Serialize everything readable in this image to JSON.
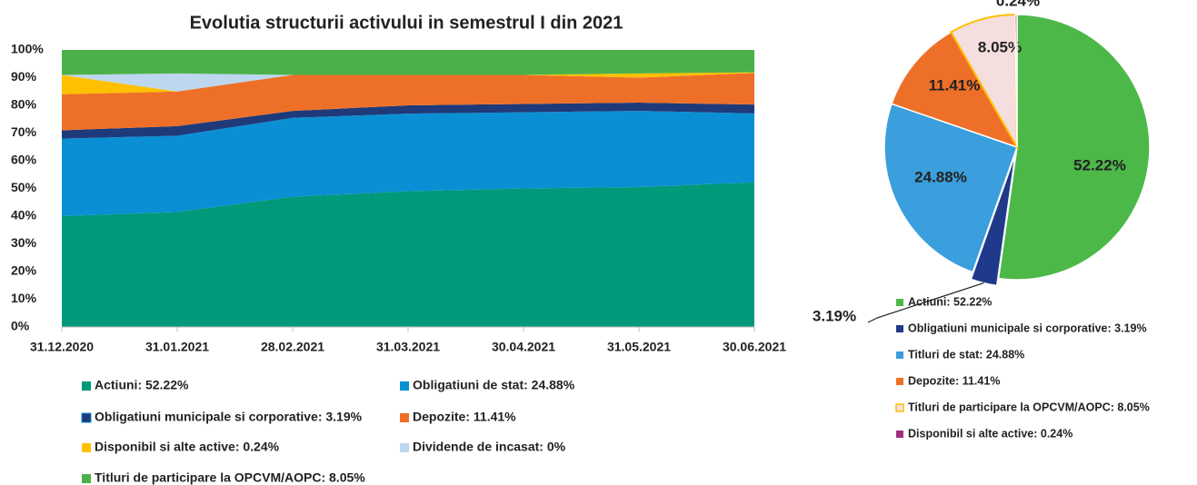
{
  "chart_data": [
    {
      "type": "stacked_area",
      "title": "Evolutia structurii activului in semestrul I din 2021",
      "categories": [
        "31.12.2020",
        "31.01.2021",
        "28.02.2021",
        "31.03.2021",
        "30.04.2021",
        "31.05.2021",
        "30.06.2021"
      ],
      "ylim": [
        0,
        100
      ],
      "yticks": [
        {
          "value": 0,
          "label": "0%"
        },
        {
          "value": 10,
          "label": "10%"
        },
        {
          "value": 20,
          "label": "20%"
        },
        {
          "value": 30,
          "label": "30%"
        },
        {
          "value": 40,
          "label": "40%"
        },
        {
          "value": 50,
          "label": "50%"
        },
        {
          "value": 60,
          "label": "60%"
        },
        {
          "value": 70,
          "label": "70%"
        },
        {
          "value": 80,
          "label": "80%"
        },
        {
          "value": 90,
          "label": "90%"
        },
        {
          "value": 100,
          "label": "100%"
        }
      ],
      "series": [
        {
          "name": "Actiuni: 52.22%",
          "color": "#00997a",
          "values": [
            40,
            41.5,
            47,
            49,
            50,
            50.5,
            52.22
          ]
        },
        {
          "name": "Obligatiuni de stat: 24.88%",
          "color": "#0a8fd4",
          "values": [
            28,
            27.5,
            28.5,
            28,
            27.5,
            27.5,
            24.88
          ]
        },
        {
          "name": "Obligatiuni municipale si corporative: 3.19%",
          "color": "#1f3a7a",
          "values": [
            3,
            3.5,
            2.5,
            3,
            3,
            3,
            3.19
          ]
        },
        {
          "name": "Depozite: 11.41%",
          "color": "#ee7028",
          "values": [
            13,
            12.5,
            13,
            11,
            10.5,
            9,
            11.41
          ]
        },
        {
          "name": "Disponibil si alte active: 0.24%",
          "color": "#ffc000",
          "values": [
            7,
            0,
            0,
            0,
            0,
            1.5,
            0.24
          ]
        },
        {
          "name": "Dividende de incasat: 0%",
          "color": "#bdd7ee",
          "values": [
            0,
            6.5,
            0,
            0,
            0,
            0,
            0
          ]
        },
        {
          "name": "Titluri de participare la OPCVM/AOPC: 8.05%",
          "color": "#4cb04a",
          "values": [
            9,
            8.5,
            9,
            9,
            9,
            8.5,
            8.05
          ]
        }
      ]
    },
    {
      "type": "pie",
      "categories": [
        "Actiuni: 52.22%",
        "Obligatiuni municipale si corporative: 3.19%",
        "Titluri de stat: 24.88%",
        "Depozite: 11.41%",
        "Titluri de participare la OPCVM/AOPC: 8.05%",
        "Disponibil si alte active: 0.24%"
      ],
      "values": [
        52.22,
        3.19,
        24.88,
        11.41,
        8.05,
        0.24
      ],
      "value_labels": [
        "52.22%",
        "3.19%",
        "24.88%",
        "11.41%",
        "8.05%",
        "0.24%"
      ],
      "colors": [
        "#4cb848",
        "#1f3a8a",
        "#3a9fdc",
        "#ee7028",
        "#f5dede",
        "#a03080"
      ]
    }
  ]
}
